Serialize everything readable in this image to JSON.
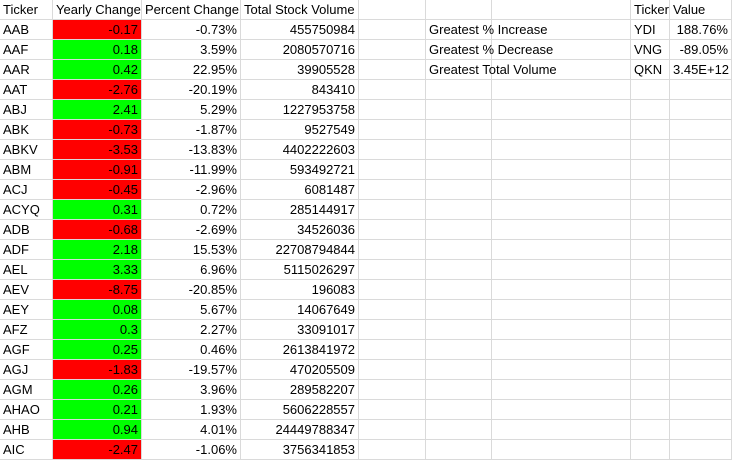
{
  "headers": {
    "ticker": "Ticker",
    "yearly_change": "Yearly Change",
    "percent_change": "Percent Change",
    "total_volume": "Total Stock Volume",
    "summary_ticker": "Ticker",
    "summary_value": "Value"
  },
  "rows": [
    {
      "ticker": "AAB",
      "yearly_change": "-0.17",
      "percent_change": "-0.73%",
      "volume": "455750984",
      "sign": "neg"
    },
    {
      "ticker": "AAF",
      "yearly_change": "0.18",
      "percent_change": "3.59%",
      "volume": "2080570716",
      "sign": "pos"
    },
    {
      "ticker": "AAR",
      "yearly_change": "0.42",
      "percent_change": "22.95%",
      "volume": "39905528",
      "sign": "pos"
    },
    {
      "ticker": "AAT",
      "yearly_change": "-2.76",
      "percent_change": "-20.19%",
      "volume": "843410",
      "sign": "neg"
    },
    {
      "ticker": "ABJ",
      "yearly_change": "2.41",
      "percent_change": "5.29%",
      "volume": "1227953758",
      "sign": "pos"
    },
    {
      "ticker": "ABK",
      "yearly_change": "-0.73",
      "percent_change": "-1.87%",
      "volume": "9527549",
      "sign": "neg"
    },
    {
      "ticker": "ABKV",
      "yearly_change": "-3.53",
      "percent_change": "-13.83%",
      "volume": "4402222603",
      "sign": "neg"
    },
    {
      "ticker": "ABM",
      "yearly_change": "-0.91",
      "percent_change": "-11.99%",
      "volume": "593492721",
      "sign": "neg"
    },
    {
      "ticker": "ACJ",
      "yearly_change": "-0.45",
      "percent_change": "-2.96%",
      "volume": "6081487",
      "sign": "neg"
    },
    {
      "ticker": "ACYQ",
      "yearly_change": "0.31",
      "percent_change": "0.72%",
      "volume": "285144917",
      "sign": "pos"
    },
    {
      "ticker": "ADB",
      "yearly_change": "-0.68",
      "percent_change": "-2.69%",
      "volume": "34526036",
      "sign": "neg"
    },
    {
      "ticker": "ADF",
      "yearly_change": "2.18",
      "percent_change": "15.53%",
      "volume": "22708794844",
      "sign": "pos"
    },
    {
      "ticker": "AEL",
      "yearly_change": "3.33",
      "percent_change": "6.96%",
      "volume": "5115026297",
      "sign": "pos"
    },
    {
      "ticker": "AEV",
      "yearly_change": "-8.75",
      "percent_change": "-20.85%",
      "volume": "196083",
      "sign": "neg"
    },
    {
      "ticker": "AEY",
      "yearly_change": "0.08",
      "percent_change": "5.67%",
      "volume": "14067649",
      "sign": "pos"
    },
    {
      "ticker": "AFZ",
      "yearly_change": "0.3",
      "percent_change": "2.27%",
      "volume": "33091017",
      "sign": "pos"
    },
    {
      "ticker": "AGF",
      "yearly_change": "0.25",
      "percent_change": "0.46%",
      "volume": "2613841972",
      "sign": "pos"
    },
    {
      "ticker": "AGJ",
      "yearly_change": "-1.83",
      "percent_change": "-19.57%",
      "volume": "470205509",
      "sign": "neg"
    },
    {
      "ticker": "AGM",
      "yearly_change": "0.26",
      "percent_change": "3.96%",
      "volume": "289582207",
      "sign": "pos"
    },
    {
      "ticker": "AHAO",
      "yearly_change": "0.21",
      "percent_change": "1.93%",
      "volume": "5606228557",
      "sign": "pos"
    },
    {
      "ticker": "AHB",
      "yearly_change": "0.94",
      "percent_change": "4.01%",
      "volume": "24449788347",
      "sign": "pos"
    },
    {
      "ticker": "AIC",
      "yearly_change": "-2.47",
      "percent_change": "-1.06%",
      "volume": "3756341853",
      "sign": "neg"
    }
  ],
  "summary": [
    {
      "label": "Greatest % Increase",
      "ticker": "YDI",
      "value": "188.76%"
    },
    {
      "label": "Greatest % Decrease",
      "ticker": "VNG",
      "value": "-89.05%"
    },
    {
      "label": "Greatest Total Volume",
      "ticker": "QKN",
      "value": "3.45E+12"
    }
  ],
  "colors": {
    "positive_fill": "#00ff00",
    "negative_fill": "#ff0000",
    "gridline": "#dadada"
  }
}
